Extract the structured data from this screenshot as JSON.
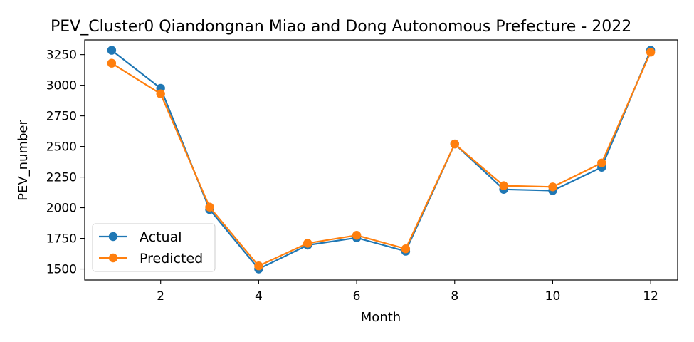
{
  "chart_data": {
    "type": "line",
    "title": "PEV_Cluster0 Qiandongnan Miao and Dong Autonomous Prefecture - 2022",
    "xlabel": "Month",
    "ylabel": "PEV_number",
    "x": [
      1,
      2,
      3,
      4,
      5,
      6,
      7,
      8,
      9,
      10,
      11,
      12
    ],
    "xlim": [
      0.45,
      12.55
    ],
    "ylim": [
      1410,
      3370
    ],
    "xticks": [
      2,
      4,
      6,
      8,
      10,
      12
    ],
    "yticks": [
      1500,
      1750,
      2000,
      2250,
      2500,
      2750,
      3000,
      3250
    ],
    "grid": false,
    "legend_position": "lower-left",
    "series": [
      {
        "name": "Actual",
        "color": "#1f77b4",
        "marker": "circle",
        "values": [
          3285,
          2975,
          1985,
          1500,
          1695,
          1755,
          1645,
          2520,
          2150,
          2140,
          2330,
          3285
        ]
      },
      {
        "name": "Predicted",
        "color": "#ff7f0e",
        "marker": "circle",
        "values": [
          3180,
          2930,
          2005,
          1525,
          1710,
          1775,
          1665,
          2520,
          2180,
          2170,
          2365,
          3270
        ]
      }
    ]
  }
}
